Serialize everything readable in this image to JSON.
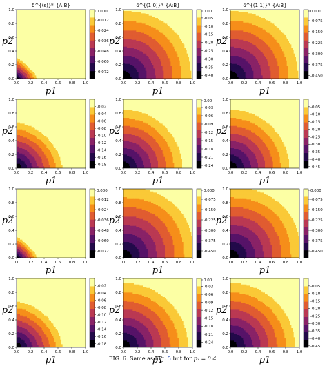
{
  "column_titles": [
    "δ^{(s)}ᴺ_{A:B}",
    "δ^{(1|0)}ᴺ_{A:B}",
    "δ^{(1|1)}ᴺ_{A:B}"
  ],
  "caption": {
    "prefix": "FIG. 6. Same as Fig.",
    "fig_ref": "5",
    "middle": "but for",
    "condition": "p₃ = 0.4."
  },
  "colormap": "inferno",
  "chart_data": [
    {
      "type": "heatmap",
      "panel": "r1c1",
      "xlabel": "p1",
      "ylabel": "p2",
      "xlim": [
        0,
        1
      ],
      "ylim": [
        0,
        1
      ],
      "x_ticks": [
        "0.0",
        "0.2",
        "0.4",
        "0.6",
        "0.8",
        "1.0"
      ],
      "y_ticks": [
        "0.0",
        "0.2",
        "0.4",
        "0.6",
        "0.8",
        "1.0"
      ],
      "zmin": -0.08,
      "zmax": 0.0,
      "zero_radius": 0.35,
      "shape_exponent": 1.3,
      "colorbar_ticks": [
        "0.000",
        "-0.012",
        "-0.024",
        "-0.036",
        "-0.048",
        "-0.060",
        "-0.072"
      ]
    },
    {
      "type": "heatmap",
      "panel": "r1c2",
      "xlabel": "p1",
      "ylabel": "p2",
      "xlim": [
        0,
        1
      ],
      "ylim": [
        0,
        1
      ],
      "x_ticks": [
        "0.0",
        "0.2",
        "0.4",
        "0.6",
        "0.8",
        "1.0"
      ],
      "y_ticks": [
        "0.0",
        "0.2",
        "0.4",
        "0.6",
        "0.8",
        "1.0"
      ],
      "zmin": -0.42,
      "zmax": 0.0,
      "zero_radius": 1.15,
      "shape_exponent": 2.2,
      "colorbar_ticks": [
        "0.00",
        "-0.05",
        "-0.10",
        "-0.15",
        "-0.20",
        "-0.25",
        "-0.30",
        "-0.35",
        "-0.40"
      ]
    },
    {
      "type": "heatmap",
      "panel": "r1c3",
      "xlabel": "p1",
      "ylabel": "p2",
      "xlim": [
        0,
        1
      ],
      "ylim": [
        0,
        1
      ],
      "x_ticks": [
        "0.0",
        "0.2",
        "0.4",
        "0.6",
        "0.8",
        "1.0"
      ],
      "y_ticks": [
        "0.0",
        "0.2",
        "0.4",
        "0.6",
        "0.8",
        "1.0"
      ],
      "zmin": -0.47,
      "zmax": 0.0,
      "zero_radius": 1.15,
      "shape_exponent": 2.2,
      "colorbar_ticks": [
        "0.000",
        "-0.075",
        "-0.150",
        "-0.225",
        "-0.300",
        "-0.375",
        "-0.450"
      ]
    },
    {
      "type": "heatmap",
      "panel": "r2c1",
      "xlabel": "p1",
      "ylabel": "p2",
      "xlim": [
        0,
        1
      ],
      "ylim": [
        0,
        1
      ],
      "x_ticks": [
        "0.0",
        "0.2",
        "0.4",
        "0.6",
        "0.8",
        "1.0"
      ],
      "y_ticks": [
        "0.0",
        "0.2",
        "0.4",
        "0.6",
        "0.8",
        "1.0"
      ],
      "zmin": -0.19,
      "zmax": 0.0,
      "zero_radius": 0.78,
      "shape_exponent": 1.7,
      "colorbar_ticks": [
        "-0.02",
        "-0.04",
        "-0.06",
        "-0.08",
        "-0.10",
        "-0.12",
        "-0.14",
        "-0.16",
        "-0.18"
      ]
    },
    {
      "type": "heatmap",
      "panel": "r2c2",
      "xlabel": "p1",
      "ylabel": "p2",
      "xlim": [
        0,
        1
      ],
      "ylim": [
        0,
        1
      ],
      "x_ticks": [
        "0.0",
        "0.2",
        "0.4",
        "0.6",
        "0.8",
        "1.0"
      ],
      "y_ticks": [
        "0.0",
        "0.2",
        "0.4",
        "0.6",
        "0.8",
        "1.0"
      ],
      "zmin": -0.25,
      "zmax": 0.0,
      "zero_radius": 1.0,
      "shape_exponent": 2.0,
      "colorbar_ticks": [
        "0.00",
        "-0.03",
        "-0.06",
        "-0.09",
        "-0.12",
        "-0.15",
        "-0.18",
        "-0.21",
        "-0.24"
      ]
    },
    {
      "type": "heatmap",
      "panel": "r2c3",
      "xlabel": "p1",
      "ylabel": "p2",
      "xlim": [
        0,
        1
      ],
      "ylim": [
        0,
        1
      ],
      "x_ticks": [
        "0.0",
        "0.2",
        "0.4",
        "0.6",
        "0.8",
        "1.0"
      ],
      "y_ticks": [
        "0.0",
        "0.2",
        "0.4",
        "0.6",
        "0.8",
        "1.0"
      ],
      "zmin": -0.46,
      "zmax": 0.0,
      "zero_radius": 1.0,
      "shape_exponent": 2.0,
      "colorbar_ticks": [
        "-0.05",
        "-0.10",
        "-0.15",
        "-0.20",
        "-0.25",
        "-0.30",
        "-0.35",
        "-0.40",
        "-0.45"
      ]
    },
    {
      "type": "heatmap",
      "panel": "r3c1",
      "xlabel": "p1",
      "ylabel": "p2",
      "xlim": [
        0,
        1
      ],
      "ylim": [
        0,
        1
      ],
      "x_ticks": [
        "0.0",
        "0.2",
        "0.4",
        "0.6",
        "0.8",
        "1.0"
      ],
      "y_ticks": [
        "0.0",
        "0.2",
        "0.4",
        "0.6",
        "0.8",
        "1.0"
      ],
      "zmin": -0.08,
      "zmax": 0.0,
      "zero_radius": 0.35,
      "shape_exponent": 1.3,
      "colorbar_ticks": [
        "0.000",
        "-0.012",
        "-0.024",
        "-0.036",
        "-0.048",
        "-0.060",
        "-0.072"
      ]
    },
    {
      "type": "heatmap",
      "panel": "r3c2",
      "xlabel": "p1",
      "ylabel": "p2",
      "xlim": [
        0,
        1
      ],
      "ylim": [
        0,
        1
      ],
      "x_ticks": [
        "0.0",
        "0.2",
        "0.4",
        "0.6",
        "0.8",
        "1.0"
      ],
      "y_ticks": [
        "0.0",
        "0.2",
        "0.4",
        "0.6",
        "0.8",
        "1.0"
      ],
      "zmin": -0.5,
      "zmax": 0.0,
      "zero_radius": 1.2,
      "shape_exponent": 2.3,
      "colorbar_ticks": [
        "0.000",
        "-0.075",
        "-0.150",
        "-0.225",
        "-0.300",
        "-0.375",
        "-0.450"
      ]
    },
    {
      "type": "heatmap",
      "panel": "r3c3",
      "xlabel": "p1",
      "ylabel": "p2",
      "xlim": [
        0,
        1
      ],
      "ylim": [
        0,
        1
      ],
      "x_ticks": [
        "0.0",
        "0.2",
        "0.4",
        "0.6",
        "0.8",
        "1.0"
      ],
      "y_ticks": [
        "0.0",
        "0.2",
        "0.4",
        "0.6",
        "0.8",
        "1.0"
      ],
      "zmin": -0.5,
      "zmax": 0.0,
      "zero_radius": 1.2,
      "shape_exponent": 2.3,
      "colorbar_ticks": [
        "0.000",
        "-0.075",
        "-0.150",
        "-0.225",
        "-0.300",
        "-0.375",
        "-0.450"
      ]
    },
    {
      "type": "heatmap",
      "panel": "r4c1",
      "xlabel": "p1",
      "ylabel": "p2",
      "xlim": [
        0,
        1
      ],
      "ylim": [
        0,
        1
      ],
      "x_ticks": [
        "0.0",
        "0.2",
        "0.4",
        "0.6",
        "0.8",
        "1.0"
      ],
      "y_ticks": [
        "0.0",
        "0.2",
        "0.4",
        "0.6",
        "0.8",
        "1.0"
      ],
      "zmin": -0.19,
      "zmax": 0.0,
      "zero_radius": 0.78,
      "shape_exponent": 1.7,
      "colorbar_ticks": [
        "-0.02",
        "-0.04",
        "-0.06",
        "-0.08",
        "-0.10",
        "-0.12",
        "-0.14",
        "-0.16",
        "-0.18"
      ]
    },
    {
      "type": "heatmap",
      "panel": "r4c2",
      "xlabel": "p1",
      "ylabel": "p2",
      "xlim": [
        0,
        1
      ],
      "ylim": [
        0,
        1
      ],
      "x_ticks": [
        "0.0",
        "0.2",
        "0.4",
        "0.6",
        "0.8",
        "1.0"
      ],
      "y_ticks": [
        "0.0",
        "0.2",
        "0.4",
        "0.6",
        "0.8",
        "1.0"
      ],
      "zmin": -0.26,
      "zmax": 0.0,
      "zero_radius": 1.1,
      "shape_exponent": 2.0,
      "colorbar_ticks": [
        "0.00",
        "-0.03",
        "-0.06",
        "-0.09",
        "-0.12",
        "-0.15",
        "-0.18",
        "-0.21",
        "-0.24"
      ]
    },
    {
      "type": "heatmap",
      "panel": "r4c3",
      "xlabel": "p1",
      "ylabel": "p2",
      "xlim": [
        0,
        1
      ],
      "ylim": [
        0,
        1
      ],
      "x_ticks": [
        "0.0",
        "0.2",
        "0.4",
        "0.6",
        "0.8",
        "1.0"
      ],
      "y_ticks": [
        "0.0",
        "0.2",
        "0.4",
        "0.6",
        "0.8",
        "1.0"
      ],
      "zmin": -0.46,
      "zmax": 0.0,
      "zero_radius": 1.1,
      "shape_exponent": 2.0,
      "colorbar_ticks": [
        "-0.05",
        "-0.10",
        "-0.15",
        "-0.20",
        "-0.25",
        "-0.30",
        "-0.35",
        "-0.40",
        "-0.45"
      ]
    }
  ]
}
